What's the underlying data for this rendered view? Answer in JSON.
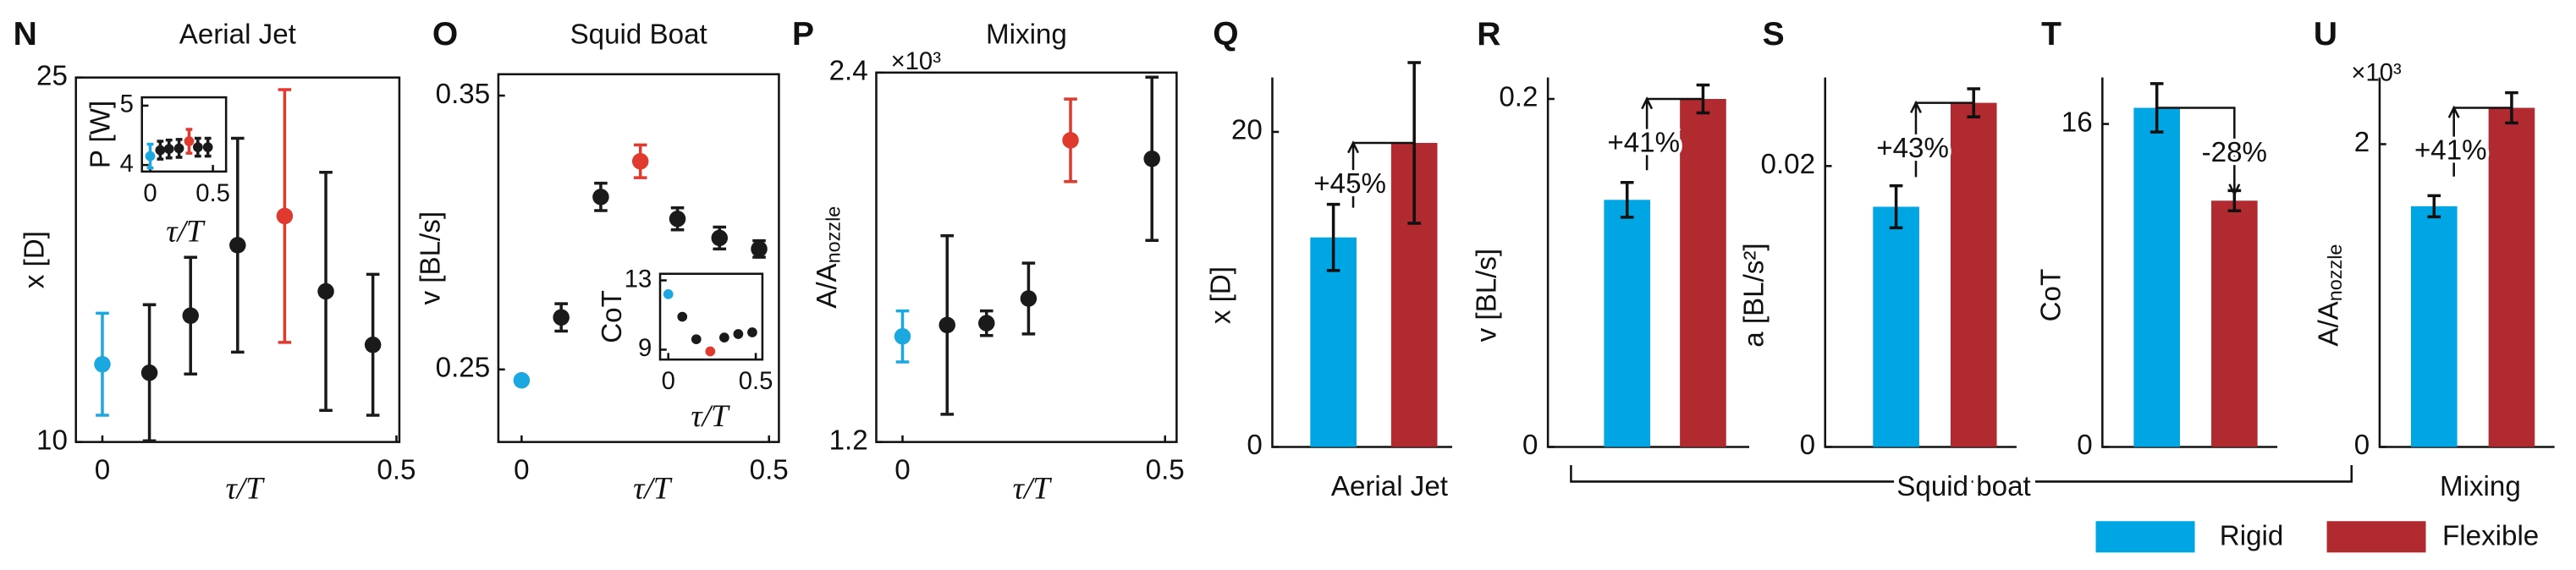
{
  "chart_data": [
    {
      "type": "scatter",
      "label": "N",
      "title": "Aerial Jet",
      "x_label": "τ/T",
      "y_label": "x [D]",
      "xlim": [
        -0.045,
        0.505
      ],
      "ylim": [
        10,
        25
      ],
      "xticks": [
        0,
        0.5
      ],
      "yticks": [
        10,
        25
      ],
      "x": [
        0,
        0.08,
        0.15,
        0.23,
        0.31,
        0.38,
        0.46
      ],
      "values": [
        13.2,
        12.85,
        15.2,
        18.1,
        19.3,
        16.2,
        14.0
      ],
      "errors": [
        2.1,
        2.8,
        2.4,
        4.4,
        5.2,
        4.9,
        2.9
      ],
      "colors": [
        "#1ba8e0",
        "#1a1a1a",
        "#1a1a1a",
        "#1a1a1a",
        "#e0392e",
        "#1a1a1a",
        "#1a1a1a"
      ],
      "inset": {
        "x_label": "τ/T",
        "y_label": "P [W]",
        "xlim": [
          -0.066,
          0.605
        ],
        "ylim": [
          3.89,
          5.14
        ],
        "xticks": [
          0,
          0.5
        ],
        "yticks": [
          4,
          5
        ],
        "x": [
          0,
          0.08,
          0.15,
          0.23,
          0.31,
          0.38,
          0.46
        ],
        "values": [
          4.15,
          4.25,
          4.27,
          4.28,
          4.4,
          4.3,
          4.3
        ],
        "errors": [
          0.2,
          0.15,
          0.15,
          0.15,
          0.2,
          0.15,
          0.15
        ],
        "colors": [
          "#1ba8e0",
          "#1a1a1a",
          "#1a1a1a",
          "#1a1a1a",
          "#e0392e",
          "#1a1a1a",
          "#1a1a1a"
        ]
      }
    },
    {
      "type": "scatter",
      "label": "O",
      "title": "Squid Boat",
      "x_label": "τ/T",
      "y_label": "v [BL/s]",
      "xlim": [
        -0.047,
        0.52
      ],
      "ylim": [
        0.2235,
        0.3578
      ],
      "xticks": [
        0,
        0.5
      ],
      "yticks": [
        0.25,
        0.35
      ],
      "x": [
        0,
        0.08,
        0.16,
        0.24,
        0.315,
        0.4,
        0.48
      ],
      "values": [
        0.246,
        0.269,
        0.313,
        0.326,
        0.305,
        0.298,
        0.294
      ],
      "errors": [
        0,
        0.005,
        0.005,
        0.006,
        0.004,
        0.004,
        0.003
      ],
      "colors": [
        "#1ba8e0",
        "#1a1a1a",
        "#1a1a1a",
        "#e0392e",
        "#1a1a1a",
        "#1a1a1a",
        "#1a1a1a"
      ],
      "inset": {
        "x_label": "τ/T",
        "y_label": "CoT",
        "xlim": [
          -0.047,
          0.538
        ],
        "ylim": [
          8.43,
          13.38
        ],
        "xticks": [
          0,
          0.5
        ],
        "yticks": [
          9,
          13
        ],
        "x": [
          0,
          0.08,
          0.16,
          0.24,
          0.32,
          0.4,
          0.48
        ],
        "values": [
          12.2,
          10.9,
          9.6,
          8.9,
          9.7,
          9.9,
          10.0
        ],
        "colors": [
          "#1ba8e0",
          "#1a1a1a",
          "#1a1a1a",
          "#e0392e",
          "#1a1a1a",
          "#1a1a1a",
          "#1a1a1a"
        ]
      }
    },
    {
      "type": "scatter",
      "label": "P",
      "title": "Mixing",
      "x_label": "τ/T",
      "y_label": [
        "A/A",
        "nozzle"
      ],
      "y_exponent": "×10³",
      "xlim": [
        -0.05,
        0.522
      ],
      "ylim": [
        1.2,
        2.4
      ],
      "xticks": [
        0,
        0.5
      ],
      "yticks": [
        1.2,
        2.4
      ],
      "x": [
        0,
        0.085,
        0.16,
        0.24,
        0.32,
        0.475
      ],
      "values": [
        1.543,
        1.58,
        1.586,
        1.666,
        2.18,
        2.12
      ],
      "errors": [
        0.083,
        0.29,
        0.04,
        0.115,
        0.134,
        0.265
      ],
      "colors": [
        "#1ba8e0",
        "#1a1a1a",
        "#1a1a1a",
        "#1a1a1a",
        "#e0392e",
        "#1a1a1a"
      ]
    },
    {
      "type": "bar",
      "label": "Q",
      "y_label": "x [D]",
      "ylim": [
        0,
        23.45
      ],
      "yticks": [
        0,
        20
      ],
      "annotation": "+45%",
      "series": [
        {
          "color": "#00a5e3",
          "values": [
            13.3
          ],
          "errors": [
            2.1
          ]
        },
        {
          "color": "#b12a30",
          "values": [
            19.3
          ],
          "errors": [
            5.1
          ]
        }
      ]
    },
    {
      "type": "bar",
      "label": "R",
      "y_label": "v [BL/s]",
      "ylim": [
        0,
        0.2123
      ],
      "yticks": [
        0,
        0.2
      ],
      "annotation": "+41%",
      "series": [
        {
          "color": "#00a5e3",
          "values": [
            0.142
          ],
          "errors": [
            0.01
          ]
        },
        {
          "color": "#b12a30",
          "values": [
            0.2
          ],
          "errors": [
            0.008
          ]
        }
      ]
    },
    {
      "type": "bar",
      "label": "S",
      "y_label": "a [BL/s²]",
      "ylim": [
        0,
        0.0263
      ],
      "yticks": [
        0,
        0.02
      ],
      "annotation": "+43%",
      "series": [
        {
          "color": "#00a5e3",
          "values": [
            0.0171
          ],
          "errors": [
            0.0015
          ]
        },
        {
          "color": "#b12a30",
          "values": [
            0.0245
          ],
          "errors": [
            0.001
          ]
        }
      ]
    },
    {
      "type": "bar",
      "label": "T",
      "y_label": "CoT",
      "ylim": [
        0,
        18.3
      ],
      "yticks": [
        0,
        16
      ],
      "annotation": "-28%",
      "series": [
        {
          "color": "#00a5e3",
          "values": [
            16.8
          ],
          "errors": [
            1.2
          ]
        },
        {
          "color": "#b12a30",
          "values": [
            12.2
          ],
          "errors": [
            0.5
          ]
        }
      ]
    },
    {
      "type": "bar",
      "label": "U",
      "y_label": [
        "A/A",
        "nozzle"
      ],
      "y_exponent": "×10³",
      "ylim": [
        0,
        2.44
      ],
      "yticks": [
        0,
        2
      ],
      "annotation": "+41%",
      "series": [
        {
          "color": "#00a5e3",
          "values": [
            1.59
          ],
          "errors": [
            0.07
          ]
        },
        {
          "color": "#b12a30",
          "values": [
            2.24
          ],
          "errors": [
            0.1
          ]
        }
      ]
    }
  ],
  "groups": [
    {
      "label": "Aerial Jet"
    },
    {
      "label": "Squid boat"
    },
    {
      "label": "Mixing"
    }
  ],
  "legend": [
    {
      "name": "Rigid",
      "color": "#00a5e3"
    },
    {
      "name": "Flexible",
      "color": "#b12a30"
    }
  ]
}
